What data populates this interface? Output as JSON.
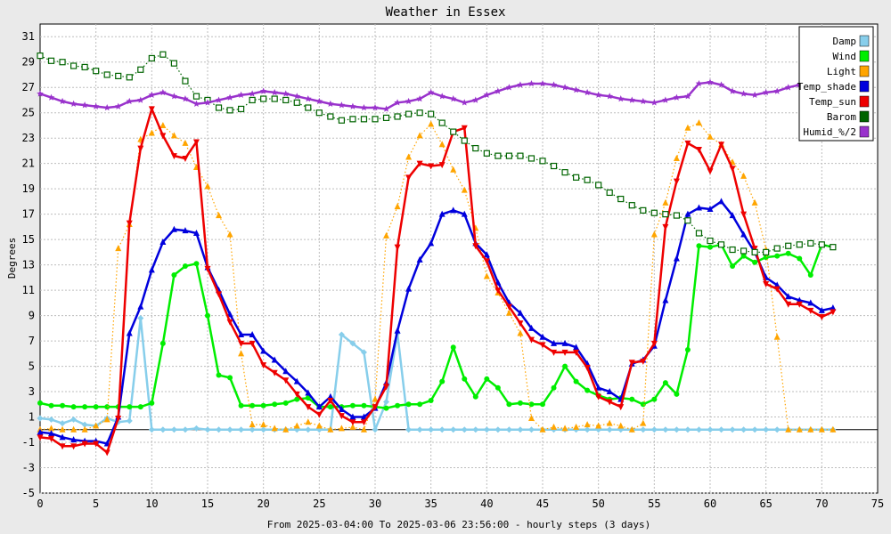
{
  "chart_data": {
    "type": "line",
    "title": "Weather in Essex",
    "xlabel": "From 2025-03-04:00 To 2025-03-06 23:56:00 - hourly steps (3 days)",
    "ylabel": "Degrees",
    "xlim": [
      0,
      75
    ],
    "ylim": [
      -5,
      32
    ],
    "x_ticks": [
      0,
      5,
      10,
      15,
      20,
      25,
      30,
      35,
      40,
      45,
      50,
      55,
      60,
      65,
      70,
      75
    ],
    "y_ticks": [
      -5,
      -3,
      -1,
      1,
      3,
      5,
      7,
      9,
      11,
      13,
      15,
      17,
      19,
      21,
      23,
      25,
      27,
      29,
      31
    ],
    "grid": true,
    "legend_position": "top-right",
    "series": [
      {
        "name": "Damp",
        "color": "#87ceeb",
        "marker": "diamond",
        "dotted": false,
        "width": 2.5,
        "values": [
          0.9,
          0.8,
          0.5,
          0.8,
          0.4,
          0.3,
          0.9,
          0.6,
          0.7,
          8.8,
          0,
          0,
          0,
          0,
          0.1,
          0,
          0,
          0,
          0,
          0,
          0,
          0,
          0,
          0,
          0,
          0,
          0,
          7.5,
          6.8,
          6.1,
          0,
          2.2,
          7.6,
          0,
          0,
          0,
          0,
          0,
          0,
          0,
          0,
          0,
          0,
          0,
          0,
          0,
          0,
          0,
          0,
          0,
          0,
          0,
          0,
          0,
          0,
          0,
          0,
          0,
          0,
          0,
          0,
          0,
          0,
          0,
          0,
          0,
          0,
          0,
          0,
          0,
          0,
          0
        ]
      },
      {
        "name": "Wind",
        "color": "#00ee00",
        "marker": "dot",
        "dotted": false,
        "width": 2.5,
        "values": [
          2.1,
          1.9,
          1.9,
          1.8,
          1.8,
          1.8,
          1.8,
          1.8,
          1.8,
          1.8,
          2.1,
          6.8,
          12.2,
          12.9,
          13.1,
          9,
          4.3,
          4.1,
          1.9,
          1.9,
          1.9,
          2,
          2.1,
          2.4,
          2.5,
          1.8,
          1.8,
          1.8,
          1.9,
          1.9,
          1.8,
          1.7,
          1.9,
          2,
          2,
          2.3,
          3.8,
          6.5,
          4,
          2.6,
          4,
          3.3,
          2,
          2.1,
          2,
          2,
          3.3,
          5,
          3.8,
          3.1,
          2.7,
          2.4,
          2.5,
          2.4,
          2,
          2.4,
          3.7,
          2.8,
          6.3,
          14.5,
          14.4,
          14.6,
          12.9,
          13.7,
          13.2,
          13.6,
          13.7,
          13.9,
          13.5,
          12.2,
          14.6,
          14.4
        ]
      },
      {
        "name": "Light",
        "color": "#ffa500",
        "marker": "triangle",
        "dotted": true,
        "width": 1.2,
        "values": [
          0,
          0.1,
          0,
          0,
          0,
          0.3,
          0.8,
          14.3,
          16.2,
          22.9,
          23.4,
          24,
          23.2,
          22.6,
          20.7,
          19.2,
          16.9,
          15.4,
          6,
          0.4,
          0.4,
          0.1,
          0,
          0.3,
          0.6,
          0.3,
          0,
          0.1,
          0.2,
          0,
          2.4,
          15.3,
          17.6,
          21.5,
          23.2,
          24.1,
          22.5,
          20.5,
          18.9,
          15.9,
          12.1,
          10.8,
          9.2,
          7.6,
          0.9,
          0,
          0.2,
          0.1,
          0.2,
          0.4,
          0.3,
          0.5,
          0.3,
          0,
          0.5,
          15.4,
          17.9,
          21.4,
          23.8,
          24.2,
          23.1,
          22.5,
          21.1,
          20,
          17.9,
          14.2,
          7.3,
          0,
          0,
          0,
          0,
          0
        ]
      },
      {
        "name": "Temp_shade",
        "color": "#0000dd",
        "marker": "triangle",
        "dotted": false,
        "width": 2.5,
        "values": [
          -0.2,
          -0.3,
          -0.6,
          -0.8,
          -0.9,
          -0.9,
          -1.1,
          1,
          7.6,
          9.7,
          12.6,
          14.8,
          15.8,
          15.7,
          15.5,
          12.8,
          11,
          9.1,
          7.5,
          7.5,
          6.2,
          5.5,
          4.6,
          3.8,
          2.9,
          1.8,
          2.6,
          1.6,
          1,
          1,
          1.7,
          3.7,
          7.8,
          11.1,
          13.4,
          14.7,
          17,
          17.3,
          17,
          14.7,
          13.8,
          11.6,
          10,
          9.2,
          8,
          7.3,
          6.8,
          6.8,
          6.5,
          5.2,
          3.3,
          3,
          2.4,
          5.2,
          5.5,
          6.6,
          10.2,
          13.5,
          17,
          17.5,
          17.4,
          18,
          16.9,
          15.4,
          14,
          12,
          11.4,
          10.5,
          10.2,
          10,
          9.4,
          9.6
        ]
      },
      {
        "name": "Temp_sun",
        "color": "#ee0000",
        "marker": "triangle-down",
        "dotted": false,
        "width": 2.5,
        "values": [
          -0.6,
          -0.7,
          -1.3,
          -1.3,
          -1.1,
          -1.1,
          -1.8,
          0.9,
          16.3,
          22.2,
          25.3,
          23.2,
          21.6,
          21.4,
          22.7,
          12.7,
          10.7,
          8.5,
          6.8,
          6.8,
          5.1,
          4.5,
          3.9,
          2.8,
          1.8,
          1.2,
          2.3,
          1.1,
          0.6,
          0.6,
          1.8,
          3.4,
          14.4,
          19.9,
          21,
          20.8,
          20.9,
          23.5,
          23.8,
          14.5,
          13.3,
          11,
          9.7,
          8.4,
          7.1,
          6.7,
          6.1,
          6.1,
          6.1,
          4.9,
          2.6,
          2.2,
          1.8,
          5.3,
          5.4,
          6.8,
          16,
          19.6,
          22.6,
          22.1,
          20.4,
          22.5,
          20.6,
          17,
          14.3,
          11.5,
          11.1,
          9.9,
          9.9,
          9.4,
          8.9,
          9.3
        ]
      },
      {
        "name": "Barom",
        "color": "#006400",
        "marker": "square",
        "dotted": true,
        "width": 1.2,
        "values": [
          29.5,
          29.1,
          29,
          28.7,
          28.6,
          28.3,
          28,
          27.9,
          27.8,
          28.4,
          29.3,
          29.6,
          28.9,
          27.5,
          26.3,
          26,
          25.4,
          25.2,
          25.3,
          26,
          26.1,
          26.1,
          26,
          25.8,
          25.4,
          25,
          24.7,
          24.4,
          24.5,
          24.5,
          24.5,
          24.6,
          24.7,
          24.9,
          25,
          24.9,
          24.2,
          23.5,
          22.8,
          22.2,
          21.8,
          21.6,
          21.6,
          21.6,
          21.4,
          21.2,
          20.8,
          20.3,
          19.9,
          19.7,
          19.3,
          18.7,
          18.2,
          17.7,
          17.3,
          17.1,
          17,
          16.9,
          16.5,
          15.5,
          14.9,
          14.6,
          14.2,
          14.1,
          14,
          14,
          14.3,
          14.5,
          14.6,
          14.7,
          14.6,
          14.4
        ]
      },
      {
        "name": "Humid_%/2",
        "color": "#9932cc",
        "marker": "star",
        "dotted": false,
        "width": 2.5,
        "values": [
          26.5,
          26.2,
          25.9,
          25.7,
          25.6,
          25.5,
          25.4,
          25.5,
          25.9,
          26,
          26.4,
          26.6,
          26.3,
          26.1,
          25.7,
          25.8,
          26,
          26.2,
          26.4,
          26.5,
          26.7,
          26.6,
          26.5,
          26.3,
          26.1,
          25.9,
          25.7,
          25.6,
          25.5,
          25.4,
          25.4,
          25.3,
          25.8,
          25.9,
          26.1,
          26.6,
          26.3,
          26.1,
          25.8,
          26,
          26.4,
          26.7,
          27,
          27.2,
          27.3,
          27.3,
          27.2,
          27,
          26.8,
          26.6,
          26.4,
          26.3,
          26.1,
          26,
          25.9,
          25.8,
          26,
          26.2,
          26.3,
          27.3,
          27.4,
          27.2,
          26.7,
          26.5,
          26.4,
          26.6,
          26.7,
          27,
          27.2,
          27.1,
          26.9,
          26.8
        ]
      }
    ]
  }
}
